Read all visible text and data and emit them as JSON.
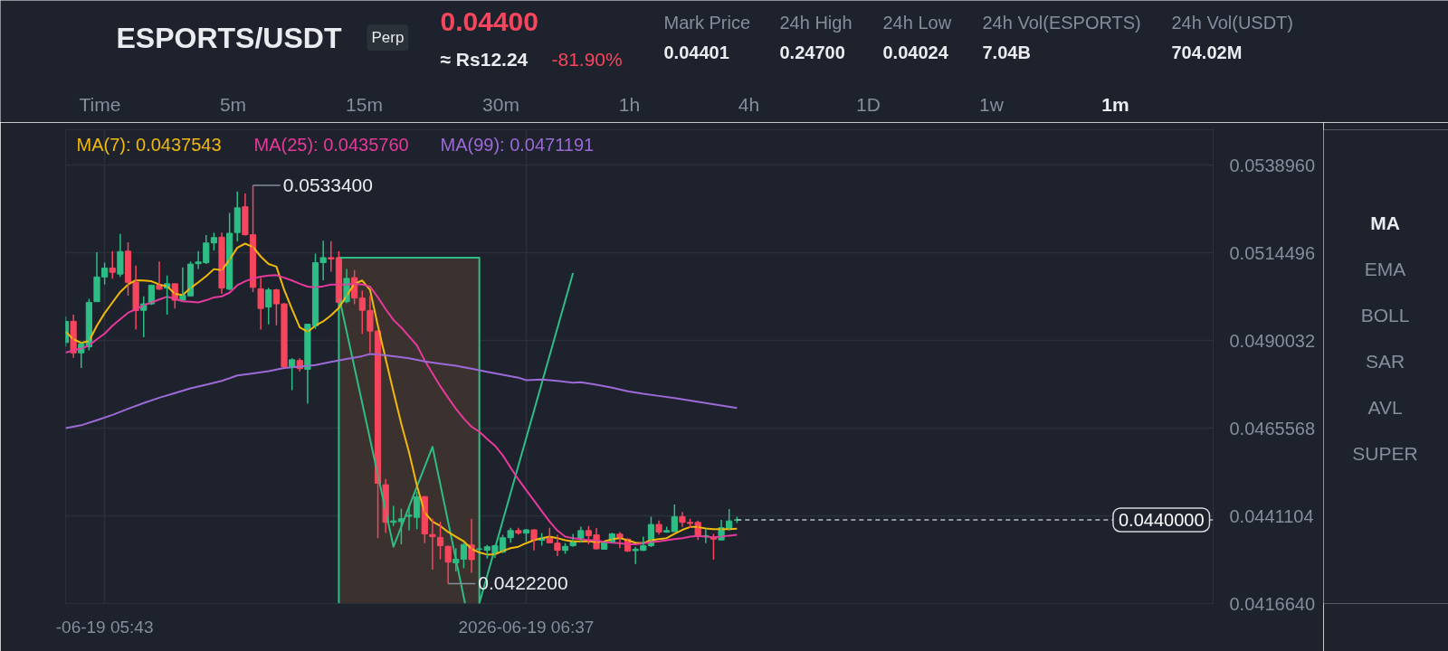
{
  "chart_data": {
    "type": "candlestick",
    "title": "ESPORTS/USDT",
    "annotations": [
      "Perp",
      "0.04400",
      "≈ Rs12.24",
      "-81.90%",
      "Mark Price",
      "0.04401",
      "24h High",
      "0.24700",
      "24h Low",
      "0.04024",
      "24h Vol(ESPORTS)",
      "7.04B",
      "24h Vol(USDT)",
      "704.02M",
      "Time",
      "5m",
      "15m",
      "30m",
      "1h",
      "4h",
      "1D",
      "1w",
      "1m",
      "MA",
      "EMA",
      "BOLL",
      "SAR",
      "AVL",
      "SUPER",
      {
        "text": "0.0533400",
        "x": "2026-06-19T06:02",
        "y": 0.05334
      },
      {
        "text": "0.0422200",
        "x": "2026-06-19T06:27",
        "y": 0.04222
      }
    ],
    "x": [
      "2026-06-19T05:38",
      "2026-06-19T05:39",
      "2026-06-19T05:40",
      "2026-06-19T05:41",
      "2026-06-19T05:42",
      "2026-06-19T05:43",
      "2026-06-19T05:44",
      "2026-06-19T05:45",
      "2026-06-19T05:46",
      "2026-06-19T05:47",
      "2026-06-19T05:48",
      "2026-06-19T05:49",
      "2026-06-19T05:50",
      "2026-06-19T05:51",
      "2026-06-19T05:52",
      "2026-06-19T05:53",
      "2026-06-19T05:54",
      "2026-06-19T05:55",
      "2026-06-19T05:56",
      "2026-06-19T05:57",
      "2026-06-19T05:58",
      "2026-06-19T05:59",
      "2026-06-19T06:00",
      "2026-06-19T06:01",
      "2026-06-19T06:02",
      "2026-06-19T06:03",
      "2026-06-19T06:04",
      "2026-06-19T06:05",
      "2026-06-19T06:06",
      "2026-06-19T06:07",
      "2026-06-19T06:08",
      "2026-06-19T06:09",
      "2026-06-19T06:10",
      "2026-06-19T06:11",
      "2026-06-19T06:12",
      "2026-06-19T06:13",
      "2026-06-19T06:14",
      "2026-06-19T06:15",
      "2026-06-19T06:16",
      "2026-06-19T06:17",
      "2026-06-19T06:18",
      "2026-06-19T06:19",
      "2026-06-19T06:20",
      "2026-06-19T06:21",
      "2026-06-19T06:22",
      "2026-06-19T06:23",
      "2026-06-19T06:24",
      "2026-06-19T06:25",
      "2026-06-19T06:26",
      "2026-06-19T06:27",
      "2026-06-19T06:28",
      "2026-06-19T06:29",
      "2026-06-19T06:30",
      "2026-06-19T06:31",
      "2026-06-19T06:32",
      "2026-06-19T06:33",
      "2026-06-19T06:34",
      "2026-06-19T06:35",
      "2026-06-19T06:36",
      "2026-06-19T06:37",
      "2026-06-19T06:38",
      "2026-06-19T06:39",
      "2026-06-19T06:40",
      "2026-06-19T06:41",
      "2026-06-19T06:42",
      "2026-06-19T06:43",
      "2026-06-19T06:44",
      "2026-06-19T06:45",
      "2026-06-19T06:46",
      "2026-06-19T06:47",
      "2026-06-19T06:48",
      "2026-06-19T06:49",
      "2026-06-19T06:50",
      "2026-06-19T06:51",
      "2026-06-19T06:52",
      "2026-06-19T06:53",
      "2026-06-19T06:54",
      "2026-06-19T06:55",
      "2026-06-19T06:56",
      "2026-06-19T06:57",
      "2026-06-19T06:58",
      "2026-06-19T06:59",
      "2026-06-19T07:00",
      "2026-06-19T07:01",
      "2026-06-19T07:02",
      "2026-06-19T07:03",
      "2026-06-19T07:04"
    ],
    "ohlc": [
      [
        0.04895,
        0.04967,
        0.04883,
        0.04954
      ],
      [
        0.04954,
        0.04973,
        0.04852,
        0.04866
      ],
      [
        0.04866,
        0.04895,
        0.04824,
        0.04891
      ],
      [
        0.04883,
        0.05017,
        0.04873,
        0.05007
      ],
      [
        0.05009,
        0.05147,
        0.05009,
        0.05078
      ],
      [
        0.05078,
        0.05118,
        0.05057,
        0.05103
      ],
      [
        0.05103,
        0.0515,
        0.05073,
        0.05091
      ],
      [
        0.05086,
        0.05198,
        0.05078,
        0.05149
      ],
      [
        0.0515,
        0.05175,
        0.05026,
        0.05063
      ],
      [
        0.05063,
        0.0511,
        0.04931,
        0.04984
      ],
      [
        0.04985,
        0.05024,
        0.0491,
        0.05003
      ],
      [
        0.05003,
        0.05057,
        0.05,
        0.05055
      ],
      [
        0.05055,
        0.05121,
        0.05042,
        0.05044
      ],
      [
        0.05047,
        0.05082,
        0.04973,
        0.05059
      ],
      [
        0.05059,
        0.05059,
        0.0499,
        0.05013
      ],
      [
        0.05013,
        0.05105,
        0.05013,
        0.05027
      ],
      [
        0.05025,
        0.05121,
        0.05025,
        0.05114
      ],
      [
        0.05115,
        0.0515,
        0.051,
        0.0512
      ],
      [
        0.05118,
        0.05195,
        0.05114,
        0.05173
      ],
      [
        0.05173,
        0.05202,
        0.05152,
        0.05188
      ],
      [
        0.05189,
        0.05202,
        0.05031,
        0.05047
      ],
      [
        0.05044,
        0.05257,
        0.05041,
        0.052
      ],
      [
        0.05202,
        0.05317,
        0.05177,
        0.05271
      ],
      [
        0.05274,
        0.05311,
        0.05194,
        0.05196
      ],
      [
        0.05196,
        0.05334,
        0.05036,
        0.05049
      ],
      [
        0.05045,
        0.05076,
        0.04931,
        0.0499
      ],
      [
        0.04994,
        0.05048,
        0.04946,
        0.05042
      ],
      [
        0.05042,
        0.05045,
        0.04943,
        0.05003
      ],
      [
        0.05003,
        0.05005,
        0.04824,
        0.04827
      ],
      [
        0.04828,
        0.04851,
        0.04762,
        0.04847
      ],
      [
        0.04845,
        0.04851,
        0.04814,
        0.04822
      ],
      [
        0.0482,
        0.04946,
        0.04725,
        0.04946
      ],
      [
        0.04942,
        0.05143,
        0.04933,
        0.05118
      ],
      [
        0.05118,
        0.05179,
        0.05069,
        0.05132
      ],
      [
        0.05132,
        0.05178,
        0.05093,
        0.05128
      ],
      [
        0.05132,
        0.0515,
        0.05005,
        0.05007
      ],
      [
        0.05009,
        0.051,
        0.05005,
        0.05074
      ],
      [
        0.05076,
        0.05097,
        0.05002,
        0.05019
      ],
      [
        0.05019,
        0.0504,
        0.04919,
        0.04985
      ],
      [
        0.04984,
        0.05026,
        0.04866,
        0.04927
      ],
      [
        0.04927,
        0.04929,
        0.04349,
        0.04502
      ],
      [
        0.04498,
        0.04514,
        0.04363,
        0.04393
      ],
      [
        0.04393,
        0.04439,
        0.04383,
        0.04397
      ],
      [
        0.04395,
        0.04431,
        0.04332,
        0.04403
      ],
      [
        0.0441,
        0.04437,
        0.0437,
        0.04413
      ],
      [
        0.04407,
        0.04479,
        0.04374,
        0.04464
      ],
      [
        0.04465,
        0.04466,
        0.04335,
        0.04361
      ],
      [
        0.04359,
        0.04403,
        0.04261,
        0.04353
      ],
      [
        0.04351,
        0.04395,
        0.0429,
        0.04328
      ],
      [
        0.04326,
        0.04328,
        0.04222,
        0.04282
      ],
      [
        0.0428,
        0.04321,
        0.04256,
        0.0429
      ],
      [
        0.0429,
        0.04335,
        0.04265,
        0.04331
      ],
      [
        0.0433,
        0.04403,
        0.04252,
        0.04289
      ],
      [
        0.04318,
        0.04326,
        0.04313,
        0.04319
      ],
      [
        0.04315,
        0.0433,
        0.04292,
        0.04325
      ],
      [
        0.04307,
        0.0433,
        0.04294,
        0.04328
      ],
      [
        0.0431,
        0.04358,
        0.04307,
        0.0435
      ],
      [
        0.0435,
        0.04378,
        0.04336,
        0.0437
      ],
      [
        0.0437,
        0.04378,
        0.04358,
        0.04363
      ],
      [
        0.04363,
        0.04374,
        0.0434,
        0.04372
      ],
      [
        0.04372,
        0.04374,
        0.04315,
        0.04343
      ],
      [
        0.04343,
        0.04363,
        0.04328,
        0.04349
      ],
      [
        0.04349,
        0.04378,
        0.04335,
        0.04336
      ],
      [
        0.04335,
        0.04358,
        0.04299,
        0.04315
      ],
      [
        0.04315,
        0.04335,
        0.04305,
        0.04326
      ],
      [
        0.04328,
        0.04361,
        0.04325,
        0.04338
      ],
      [
        0.04349,
        0.04381,
        0.04336,
        0.0437
      ],
      [
        0.0437,
        0.04383,
        0.04332,
        0.04356
      ],
      [
        0.04358,
        0.04377,
        0.04318,
        0.04319
      ],
      [
        0.04318,
        0.0434,
        0.04317,
        0.04338
      ],
      [
        0.04338,
        0.04363,
        0.04336,
        0.04361
      ],
      [
        0.0436,
        0.04366,
        0.04321,
        0.04349
      ],
      [
        0.04346,
        0.04349,
        0.0431,
        0.04313
      ],
      [
        0.04314,
        0.04325,
        0.04277,
        0.04318
      ],
      [
        0.04315,
        0.04353,
        0.04313,
        0.04328
      ],
      [
        0.04328,
        0.04409,
        0.04324,
        0.04387
      ],
      [
        0.04387,
        0.04398,
        0.04359,
        0.04366
      ],
      [
        0.04366,
        0.04381,
        0.04364,
        0.0437
      ],
      [
        0.04367,
        0.04443,
        0.04367,
        0.04409
      ],
      [
        0.04409,
        0.04422,
        0.0438,
        0.04393
      ],
      [
        0.04393,
        0.04403,
        0.04378,
        0.0439
      ],
      [
        0.04393,
        0.04398,
        0.04344,
        0.04356
      ],
      [
        0.04353,
        0.04374,
        0.04335,
        0.04356
      ],
      [
        0.04351,
        0.04361,
        0.04289,
        0.04346
      ],
      [
        0.04344,
        0.044,
        0.04343,
        0.04378
      ],
      [
        0.04374,
        0.0443,
        0.0437,
        0.04397
      ],
      [
        0.04399,
        0.04409,
        0.04391,
        0.044
      ]
    ],
    "colors": [
      "#2ebd85",
      "#f6465d",
      "#2ebd85",
      "#2ebd85",
      "#2ebd85",
      "#2ebd85",
      "#f6465d",
      "#2ebd85",
      "#f6465d",
      "#f6465d",
      "#2ebd85",
      "#2ebd85",
      "#f6465d",
      "#2ebd85",
      "#f6465d",
      "#2ebd85",
      "#2ebd85",
      "#2ebd85",
      "#2ebd85",
      "#2ebd85",
      "#f6465d",
      "#2ebd85",
      "#2ebd85",
      "#f6465d",
      "#f6465d",
      "#f6465d",
      "#2ebd85",
      "#f6465d",
      "#f6465d",
      "#2ebd85",
      "#f6465d",
      "#2ebd85",
      "#2ebd85",
      "#2ebd85",
      "#f6465d",
      "#f6465d",
      "#2ebd85",
      "#f6465d",
      "#f6465d",
      "#f6465d",
      "#f6465d",
      "#f6465d",
      "#2ebd85",
      "#2ebd85",
      "#2ebd85",
      "#2ebd85",
      "#f6465d",
      "#f6465d",
      "#f6465d",
      "#f6465d",
      "#2ebd85",
      "#2ebd85",
      "#f6465d",
      "#2ebd85",
      "#2ebd85",
      "#2ebd85",
      "#2ebd85",
      "#2ebd85",
      "#f6465d",
      "#2ebd85",
      "#f6465d",
      "#2ebd85",
      "#f6465d",
      "#f6465d",
      "#2ebd85",
      "#2ebd85",
      "#2ebd85",
      "#f6465d",
      "#f6465d",
      "#2ebd85",
      "#2ebd85",
      "#f6465d",
      "#f6465d",
      "#2ebd85",
      "#2ebd85",
      "#2ebd85",
      "#f6465d",
      "#2ebd85",
      "#2ebd85",
      "#f6465d",
      "#f6465d",
      "#f6465d",
      "#2ebd85",
      "#f6465d",
      "#2ebd85",
      "#2ebd85",
      "#2ebd85"
    ],
    "series": [
      {
        "type": "area",
        "color": "#3b312e",
        "x": [
          "2026-06-19T06:13",
          "2026-06-19T06:31"
        ],
        "values": [
          0.05132,
          0.05132
        ]
      },
      {
        "type": "line",
        "color": "#2ebd85",
        "x": [
          "2026-06-19T06:13",
          "2026-06-19T06:20",
          "2026-06-19T06:25",
          "2026-06-19T06:29:10",
          null,
          "2026-06-19T06:13",
          "2026-06-19T06:13",
          "2026-06-19T06:31",
          "2026-06-19T06:31",
          "2026-06-19T06:43"
        ],
        "values": [
          0.05026,
          0.04325,
          0.04604,
          0.04167,
          null,
          0.04167,
          0.05132,
          0.05132,
          0.04167,
          0.05089
        ]
      },
      {
        "type": "line",
        "name": "MA(7): 0.0437543",
        "color": "#f0b90b",
        "values": [
          0.04925,
          0.04904,
          0.04894,
          0.04899,
          0.04942,
          0.04977,
          0.05007,
          0.05036,
          0.05057,
          0.05069,
          0.05068,
          0.05066,
          0.05057,
          0.05052,
          0.05031,
          0.05028,
          0.05047,
          0.05063,
          0.0508,
          0.051,
          0.05097,
          0.05126,
          0.0516,
          0.05171,
          0.05162,
          0.05135,
          0.05114,
          0.05107,
          0.05042,
          0.04988,
          0.04937,
          0.04925,
          0.04942,
          0.04954,
          0.04971,
          0.04992,
          0.05026,
          0.05059,
          0.05068,
          0.05042,
          0.04942,
          0.04849,
          0.04757,
          0.04668,
          0.04588,
          0.04496,
          0.0442,
          0.04395,
          0.04383,
          0.04366,
          0.04353,
          0.0434,
          0.04319,
          0.04309,
          0.04303,
          0.04304,
          0.04313,
          0.04321,
          0.04325,
          0.04335,
          0.04343,
          0.04349,
          0.04353,
          0.04349,
          0.04343,
          0.0434,
          0.0434,
          0.0434,
          0.04338,
          0.0434,
          0.04346,
          0.04349,
          0.04343,
          0.04336,
          0.04335,
          0.04343,
          0.04346,
          0.04349,
          0.04361,
          0.04372,
          0.0438,
          0.0438,
          0.04376,
          0.04374,
          0.04374,
          0.04374,
          0.04375
        ]
      },
      {
        "type": "line",
        "name": "MA(25): 0.0435760",
        "color": "#e6399b",
        "values": [
          0.04867,
          0.04873,
          0.04878,
          0.04887,
          0.04904,
          0.0492,
          0.04942,
          0.0496,
          0.04978,
          0.04988,
          0.04999,
          0.05007,
          0.05015,
          0.05023,
          0.05017,
          0.0501,
          0.05009,
          0.05007,
          0.05013,
          0.05021,
          0.05024,
          0.05034,
          0.05055,
          0.05066,
          0.05074,
          0.05079,
          0.05082,
          0.05083,
          0.05076,
          0.05068,
          0.05059,
          0.05051,
          0.05049,
          0.05052,
          0.05057,
          0.05057,
          0.05057,
          0.05059,
          0.05057,
          0.05051,
          0.05021,
          0.04988,
          0.04958,
          0.04937,
          0.04912,
          0.04887,
          0.04845,
          0.04809,
          0.04773,
          0.04741,
          0.0471,
          0.04683,
          0.0466,
          0.04646,
          0.04626,
          0.04607,
          0.0458,
          0.04546,
          0.04513,
          0.04483,
          0.04454,
          0.04424,
          0.04395,
          0.0437,
          0.04353,
          0.04349,
          0.04346,
          0.04343,
          0.04343,
          0.04338,
          0.04336,
          0.04335,
          0.04332,
          0.04332,
          0.04334,
          0.04338,
          0.0434,
          0.04343,
          0.04346,
          0.04349,
          0.04353,
          0.04355,
          0.04353,
          0.04351,
          0.04353,
          0.04356,
          0.04358
        ]
      },
      {
        "type": "line",
        "name": "MA(99): 0.0471191",
        "color": "#9c6ad6",
        "x": [
          "2026-06-19T05:38",
          "2026-06-19T05:40",
          "2026-06-19T05:42",
          "2026-06-19T05:44",
          "2026-06-19T05:46",
          "2026-06-19T05:48",
          "2026-06-19T05:50",
          "2026-06-19T05:52",
          "2026-06-19T05:54",
          "2026-06-19T05:56",
          "2026-06-19T05:58",
          "2026-06-19T06:00",
          "2026-06-19T06:02",
          "2026-06-19T06:04",
          "2026-06-19T06:06",
          "2026-06-19T06:08",
          "2026-06-19T06:10",
          "2026-06-19T06:12",
          "2026-06-19T06:14",
          "2026-06-19T06:16",
          "2026-06-19T06:17",
          "2026-06-19T06:18",
          "2026-06-19T06:20",
          "2026-06-19T06:22",
          "2026-06-19T06:24",
          "2026-06-19T06:26",
          "2026-06-19T06:28",
          "2026-06-19T06:30",
          "2026-06-19T06:32",
          "2026-06-19T06:34",
          "2026-06-19T06:36",
          "2026-06-19T06:37",
          "2026-06-19T06:39",
          "2026-06-19T06:41",
          "2026-06-19T06:43",
          "2026-06-19T06:44",
          "2026-06-19T06:46",
          "2026-06-19T06:48",
          "2026-06-19T06:50",
          "2026-06-19T06:52",
          "2026-06-19T06:54",
          "2026-06-19T06:56",
          "2026-06-19T06:58",
          "2026-06-19T07:00",
          "2026-06-19T07:02",
          "2026-06-19T07:04"
        ],
        "values": [
          0.04656,
          0.04664,
          0.04678,
          0.04693,
          0.0471,
          0.04726,
          0.04741,
          0.04754,
          0.04767,
          0.04777,
          0.04788,
          0.04803,
          0.04809,
          0.04815,
          0.04824,
          0.04828,
          0.04832,
          0.04841,
          0.04849,
          0.04857,
          0.04863,
          0.04862,
          0.04857,
          0.04851,
          0.04842,
          0.04836,
          0.0483,
          0.04822,
          0.04813,
          0.04805,
          0.04797,
          0.0479,
          0.04792,
          0.04788,
          0.04783,
          0.04784,
          0.04777,
          0.04769,
          0.04759,
          0.04752,
          0.04746,
          0.0474,
          0.04733,
          0.04726,
          0.04719,
          0.04712
        ]
      }
    ],
    "xlim": [
      "2026-06-19T05:38",
      "2026-06-19T08:05"
    ],
    "xticks": [
      {
        "value": "2026-06-19T05:43",
        "label": "-06-19 05:43"
      },
      {
        "value": "2026-06-19T06:37",
        "label": "2026-06-19 06:37"
      }
    ],
    "ylim": [
      0.041664,
      0.05489
    ],
    "yticks": [
      {
        "value": 0.053896,
        "label": "0.0538960"
      },
      0.0514496,
      0.0490032,
      0.0465568,
      0.0441104,
      {
        "value": 0.041664,
        "label": "0.0416640"
      }
    ],
    "ref_lines": [
      {
        "axis": "y",
        "value": 0.044,
        "label": "0.0440000",
        "color": "#b7bdc6",
        "line_style": "dashed"
      }
    ],
    "grid": true,
    "legend": "top left"
  }
}
